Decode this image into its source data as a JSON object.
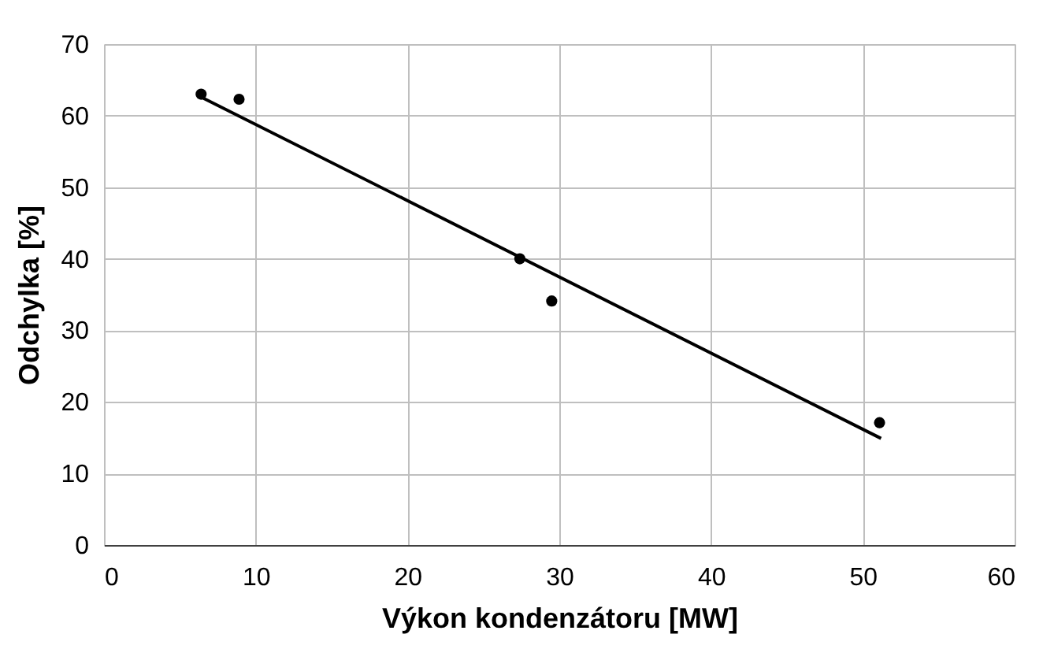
{
  "chart_data": {
    "type": "scatter",
    "xlabel": "Výkon kondenzátoru [MW]",
    "ylabel": "Odchylka [%]",
    "xlim": [
      0,
      60
    ],
    "xticks": [
      0,
      10,
      20,
      30,
      40,
      50,
      60
    ],
    "ylim": [
      0,
      70
    ],
    "yticks": [
      0,
      10,
      20,
      30,
      40,
      50,
      60,
      70
    ],
    "grid": true,
    "marker": "circle",
    "series": [
      {
        "color": "#000000",
        "x": [
          6.4,
          8.9,
          27.4,
          29.5,
          51.1
        ],
        "values": [
          63.0,
          62.3,
          40.0,
          34.1,
          17.1
        ]
      },
      {
        "type": "line",
        "color": "#000000",
        "x": [
          6.4,
          51.2
        ],
        "values": [
          62.6,
          14.9
        ],
        "marker": "none",
        "line_style": "solid"
      }
    ]
  }
}
